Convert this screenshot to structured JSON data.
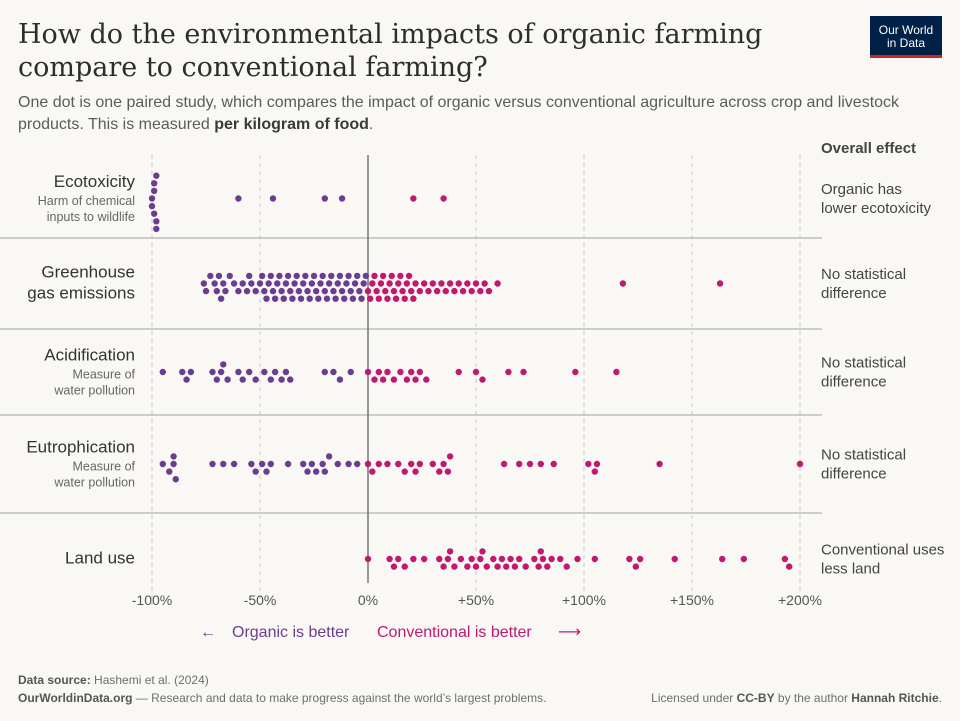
{
  "header": {
    "title": "How do the environmental impacts of organic farming compare to conventional farming?",
    "subtitle_pre": "One dot is one paired study, which compares the impact of organic versus conventional agriculture across crop and livestock products. This is measured ",
    "subtitle_bold": "per kilogram of food",
    "subtitle_post": ".",
    "logo_line1": "Our World",
    "logo_line2": "in Data"
  },
  "colors": {
    "organic": "#6b3d8f",
    "conventional": "#c0196f",
    "axis": "#555555",
    "grid": "#c8c8c8",
    "divider": "#a0a0a0"
  },
  "legend": {
    "organic_label": "Organic is better",
    "conventional_label": "Conventional is better",
    "left_arrow": "←",
    "right_arrow": "⟶"
  },
  "footer": {
    "source_label": "Data source:",
    "source_text": "Hashemi et al. (2024)",
    "site": "OurWorldinData.org",
    "site_text": " — Research and data to make progress against the world’s largest problems.",
    "license_pre": "Licensed under ",
    "license": "CC-BY",
    "license_mid": " by the author ",
    "author": "Hannah Ritchie",
    "license_post": "."
  },
  "chart_data": {
    "type": "scatter",
    "x_tick_labels": [
      "-100%",
      "-50%",
      "0%",
      "+50%",
      "+100%",
      "+150%",
      "+200%"
    ],
    "x_ticks": [
      -100,
      -50,
      0,
      50,
      100,
      150,
      200
    ],
    "xlim": [
      -100,
      200
    ],
    "effect_header": "Overall effect",
    "categories": [
      {
        "name_lines": [
          "Ecotoxicity"
        ],
        "desc_lines": [
          "Harm of chemical",
          "inputs to wildlife"
        ],
        "effect_lines": [
          "Organic has",
          "lower ecotoxicity"
        ],
        "values": [
          -98,
          -98,
          -99,
          -99,
          -100,
          -100,
          -99,
          -98,
          -60,
          -44,
          -20,
          -12,
          21,
          35
        ]
      },
      {
        "name_lines": [
          "Greenhouse",
          "gas emissions"
        ],
        "desc_lines": [],
        "effect_lines": [
          "No statistical",
          "difference"
        ],
        "values": [
          -76,
          -75,
          -73,
          -71,
          -70,
          -69,
          -68,
          -67,
          -66,
          -64,
          -62,
          -60,
          -58,
          -56,
          -55,
          -54,
          -52,
          -50,
          -49,
          -48,
          -47,
          -46,
          -45,
          -44,
          -43,
          -42,
          -41,
          -40,
          -39,
          -38,
          -37,
          -36,
          -35,
          -34,
          -33,
          -32,
          -31,
          -30,
          -29,
          -28,
          -27,
          -26,
          -25,
          -24,
          -23,
          -22,
          -21,
          -20,
          -19,
          -18,
          -17,
          -16,
          -15,
          -14,
          -13,
          -12,
          -11,
          -10,
          -9,
          -8,
          -7,
          -6,
          -5,
          -4,
          -3,
          -2,
          -1,
          0,
          1,
          2,
          3,
          4,
          5,
          6,
          7,
          8,
          9,
          10,
          11,
          12,
          13,
          14,
          15,
          16,
          17,
          18,
          19,
          20,
          21,
          22,
          24,
          26,
          28,
          30,
          32,
          34,
          36,
          38,
          40,
          42,
          44,
          46,
          48,
          50,
          52,
          54,
          56,
          60,
          118,
          163
        ]
      },
      {
        "name_lines": [
          "Acidification"
        ],
        "desc_lines": [
          "Measure of",
          "water pollution"
        ],
        "effect_lines": [
          "No statistical",
          "difference"
        ],
        "values": [
          -95,
          -86,
          -84,
          -82,
          -72,
          -70,
          -68,
          -67,
          -65,
          -60,
          -58,
          -55,
          -52,
          -48,
          -45,
          -43,
          -40,
          -38,
          -36,
          -20,
          -16,
          -13,
          -8,
          0,
          3,
          5,
          7,
          9,
          12,
          15,
          18,
          20,
          22,
          24,
          27,
          42,
          50,
          53,
          65,
          72,
          96,
          115
        ]
      },
      {
        "name_lines": [
          "Eutrophication"
        ],
        "desc_lines": [
          "Measure of",
          "water pollution"
        ],
        "effect_lines": [
          "No statistical",
          "difference"
        ],
        "values": [
          -95,
          -92,
          -90,
          -90,
          -89,
          -72,
          -67,
          -62,
          -54,
          -52,
          -49,
          -47,
          -45,
          -37,
          -30,
          -28,
          -26,
          -24,
          -21,
          -20,
          -18,
          -14,
          -9,
          -5,
          0,
          2,
          5,
          9,
          14,
          17,
          20,
          22,
          24,
          30,
          33,
          35,
          37,
          38,
          63,
          70,
          75,
          80,
          86,
          102,
          105,
          106,
          135,
          200
        ]
      },
      {
        "name_lines": [
          "Land use"
        ],
        "desc_lines": [],
        "effect_lines": [
          "Conventional uses",
          "less land"
        ],
        "values": [
          0,
          10,
          12,
          14,
          17,
          21,
          26,
          33,
          35,
          37,
          38,
          40,
          43,
          46,
          48,
          50,
          52,
          53,
          55,
          58,
          60,
          62,
          64,
          66,
          68,
          70,
          73,
          77,
          79,
          80,
          81,
          83,
          85,
          89,
          92,
          97,
          105,
          121,
          124,
          126,
          142,
          164,
          174,
          193,
          195
        ]
      }
    ]
  }
}
